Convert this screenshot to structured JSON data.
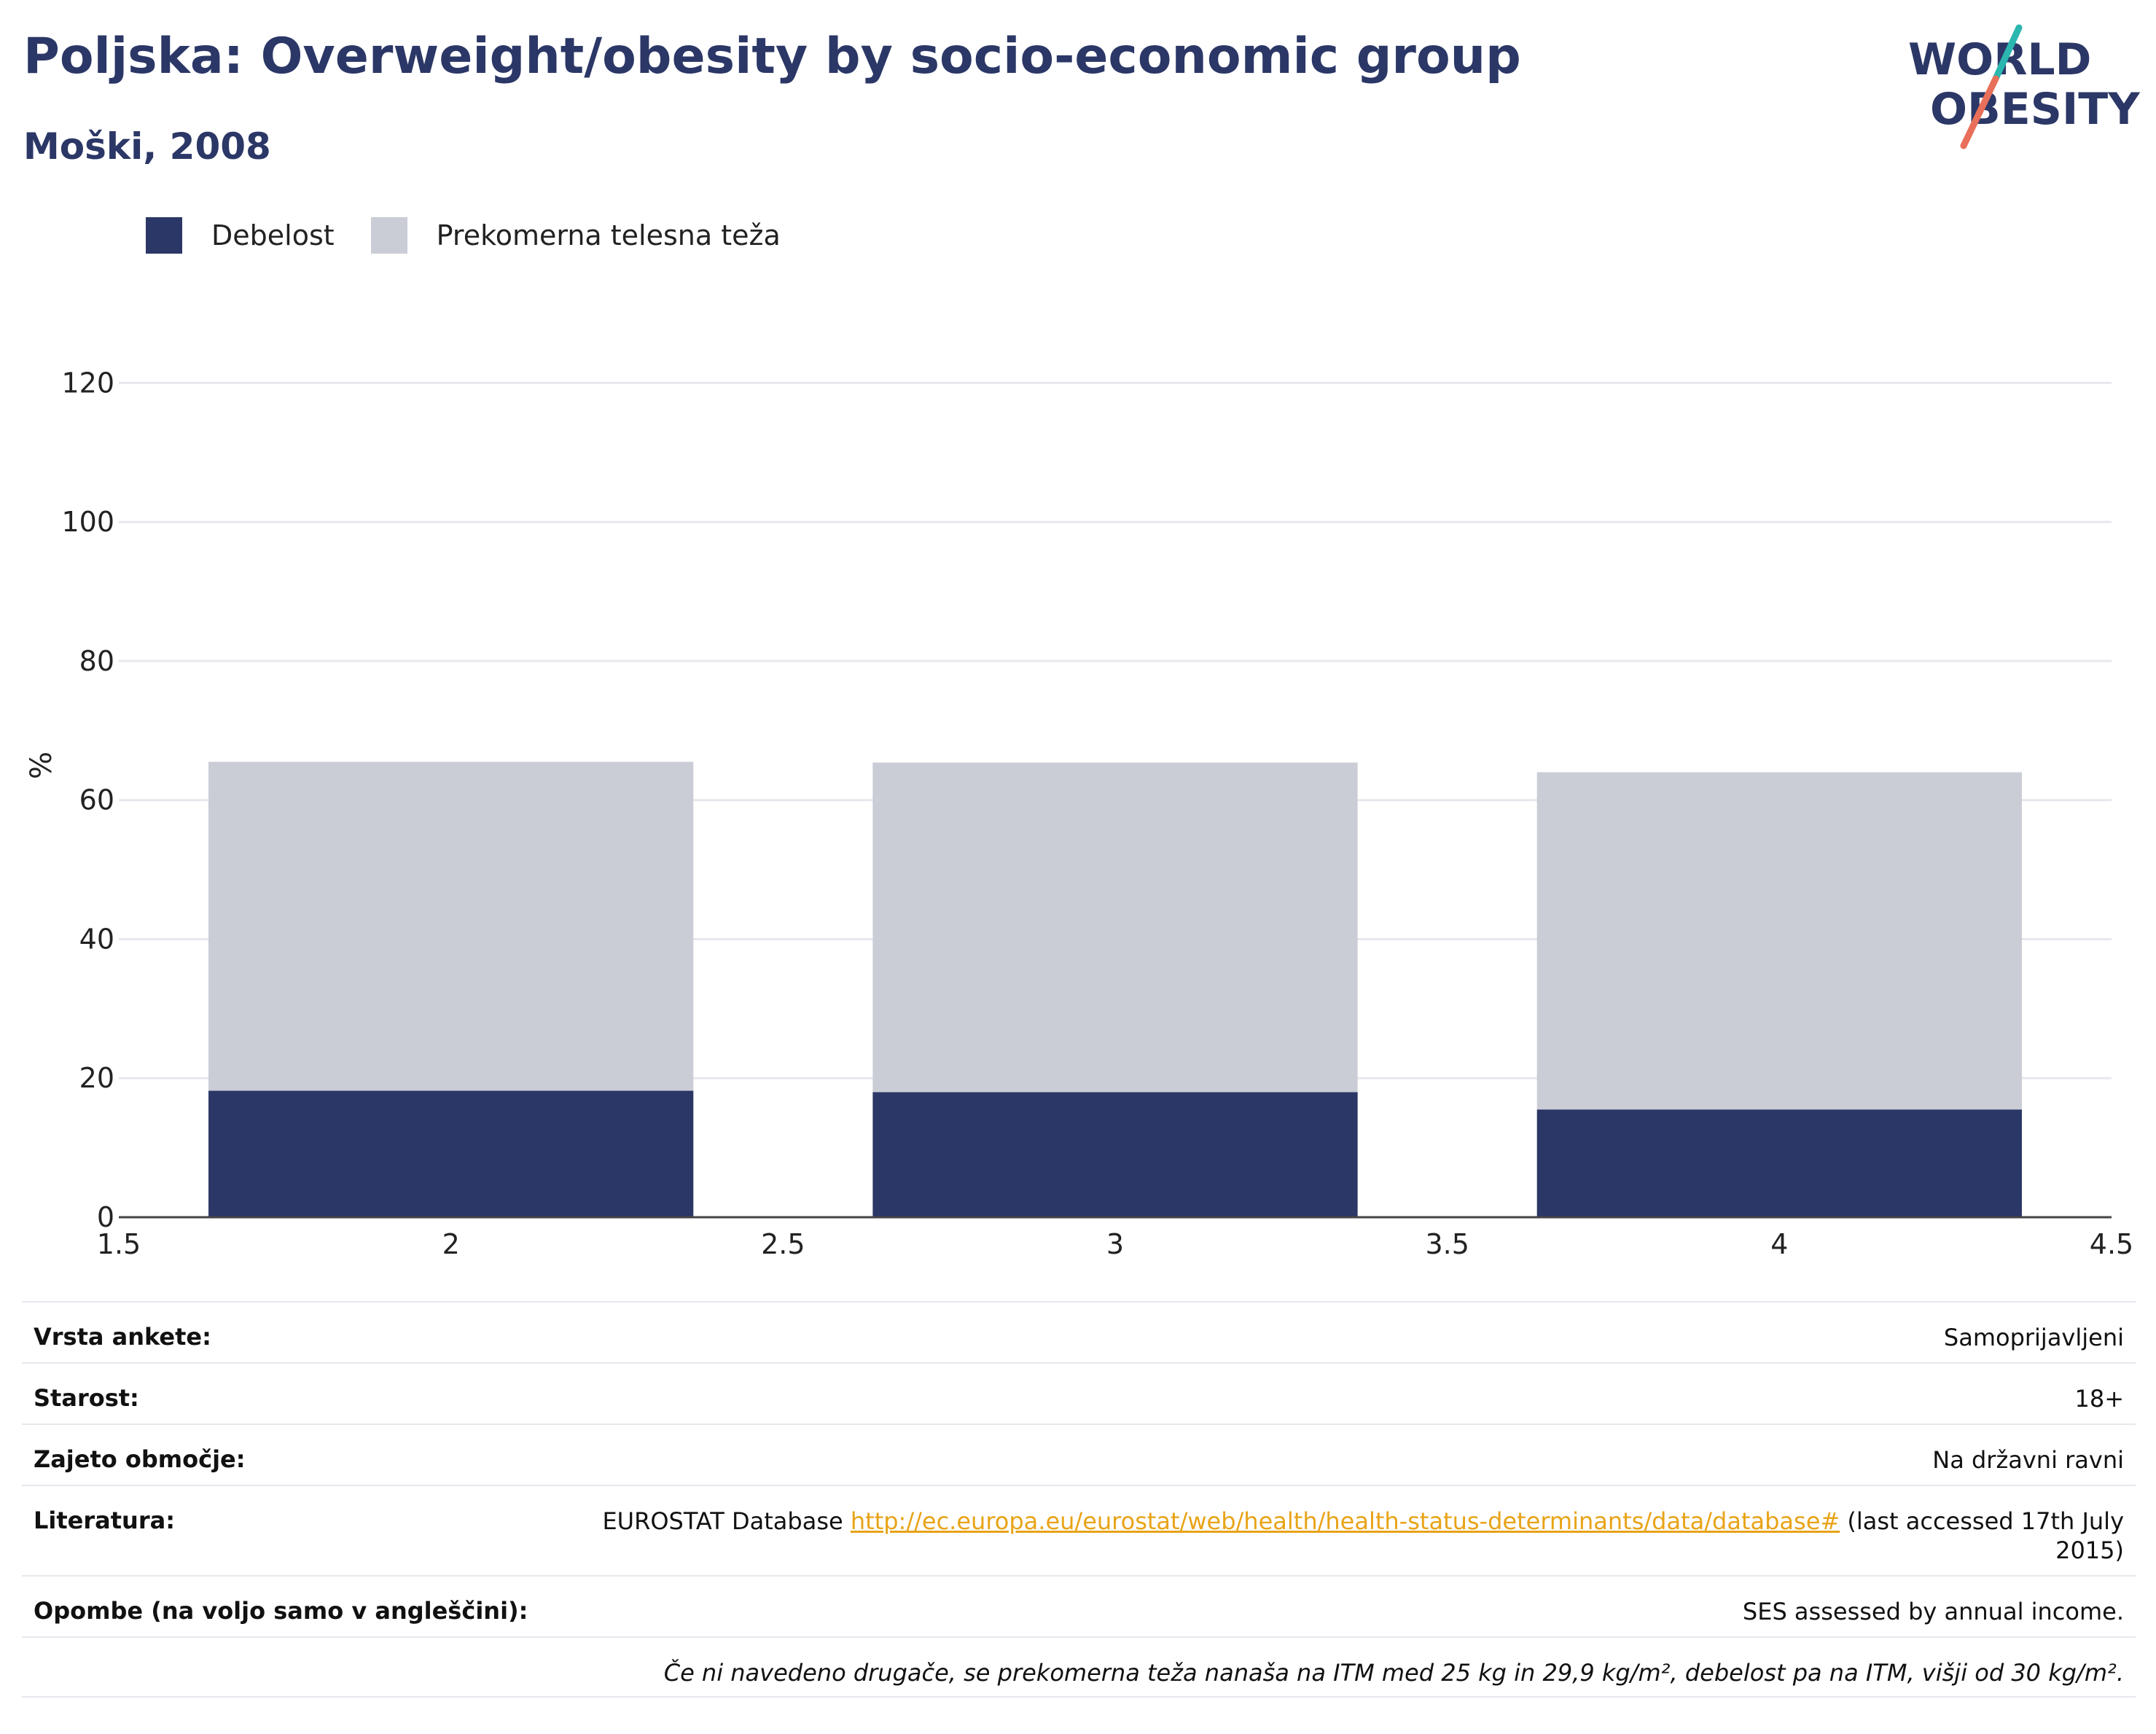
{
  "header": {
    "title": "Poljska: Overweight/obesity by socio-economic group",
    "subtitle": "Moški, 2008"
  },
  "logo": {
    "line1": "WORLD",
    "line2": "OBESITY",
    "colors": {
      "text": "#2b3766",
      "slash_top": "#2bb6b0",
      "slash_bottom": "#e8705a"
    }
  },
  "legend": [
    {
      "label": "Debelost",
      "color": "#2b3766"
    },
    {
      "label": "Prekomerna telesna teža",
      "color": "#caccd6"
    }
  ],
  "chart_data": {
    "type": "bar",
    "stacked": true,
    "x": [
      2,
      3,
      4
    ],
    "series": [
      {
        "name": "Debelost",
        "color": "#2b3766",
        "values": [
          18.2,
          18.0,
          15.5
        ]
      },
      {
        "name": "Prekomerna telesna teža",
        "color": "#caccd6",
        "values": [
          47.3,
          47.4,
          48.5
        ]
      }
    ],
    "xlim": [
      1.5,
      4.5
    ],
    "xticks": [
      1.5,
      2,
      2.5,
      3,
      3.5,
      4,
      4.5
    ],
    "xtick_labels": [
      "1.5",
      "2",
      "2.5",
      "3",
      "3.5",
      "4",
      "4.5"
    ],
    "ylim": [
      0,
      130
    ],
    "yticks": [
      0,
      20,
      40,
      60,
      80,
      100,
      120
    ],
    "ylabel": "%",
    "xlabel": "",
    "bar_width": 0.73,
    "grid": true,
    "legend_position": "top-left"
  },
  "info": {
    "survey_type": {
      "label": "Vrsta ankete:",
      "value": "Samoprijavljeni"
    },
    "age": {
      "label": "Starost:",
      "value": "18+"
    },
    "coverage": {
      "label": "Zajeto območje:",
      "value": "Na državni ravni"
    },
    "references": {
      "label": "Literatura:",
      "prefix": "EUROSTAT Database ",
      "link": "http://ec.europa.eu/eurostat/web/health/health-status-determinants/data/database#",
      "suffix": " (last accessed 17th July 2015)"
    },
    "notes": {
      "label": "Opombe (na voljo samo v angleščini):",
      "value": "SES assessed by annual income."
    },
    "footnote": "Če ni navedeno drugače, se prekomerna teža nanaša na ITM med 25 kg in 29,9 kg/m², debelost pa na ITM, višji od 30 kg/m²."
  }
}
